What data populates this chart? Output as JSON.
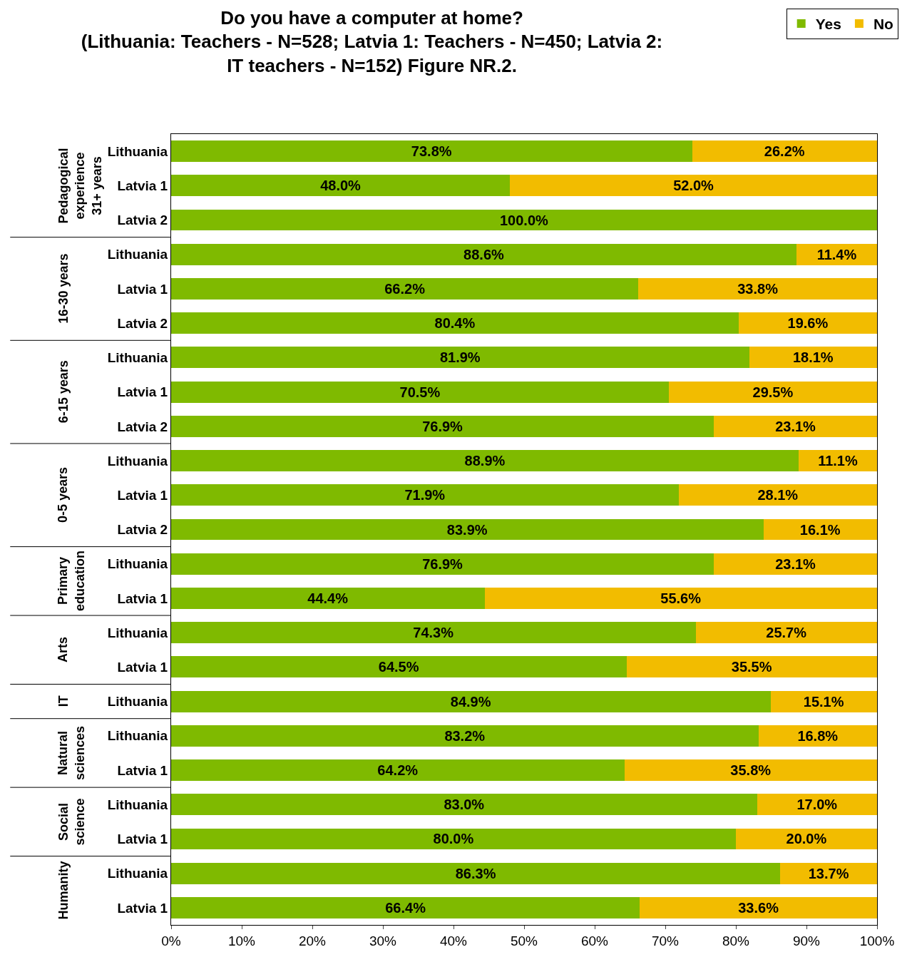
{
  "chart_data": {
    "type": "bar",
    "orientation": "horizontal",
    "stacked": true,
    "title": "Do you have a computer at home?\n(Lithuania: Teachers - N=528; Latvia 1: Teachers - N=450; Latvia 2:\nIT teachers - N=152) Figure NR.2.",
    "categories": [
      "Lithuania",
      "Latvia 1",
      "Latvia 2",
      "Lithuania",
      "Latvia 1",
      "Latvia 2",
      "Lithuania",
      "Latvia 1",
      "Latvia 2",
      "Lithuania",
      "Latvia 1",
      "Latvia 2",
      "Lithuania",
      "Latvia 1",
      "Lithuania",
      "Latvia 1",
      "Lithuania",
      "Lithuania",
      "Latvia 1",
      "Lithuania",
      "Latvia 1",
      "Lithuania",
      "Latvia 1"
    ],
    "series": [
      {
        "name": "Yes",
        "color": "#7fba00",
        "values": [
          73.8,
          48.0,
          100.0,
          88.6,
          66.2,
          80.4,
          81.9,
          70.5,
          76.9,
          88.9,
          71.9,
          83.9,
          76.9,
          44.4,
          74.3,
          64.5,
          84.9,
          83.2,
          64.2,
          83.0,
          80.0,
          86.3,
          66.4
        ],
        "value_labels": [
          "73.8%",
          "48.0%",
          "100.0%",
          "88.6%",
          "66.2%",
          "80.4%",
          "81.9%",
          "70.5%",
          "76.9%",
          "88.9%",
          "71.9%",
          "83.9%",
          "76.9%",
          "44.4%",
          "74.3%",
          "64.5%",
          "84.9%",
          "83.2%",
          "64.2%",
          "83.0%",
          "80.0%",
          "86.3%",
          "66.4%"
        ]
      },
      {
        "name": "No",
        "color": "#f2bc00",
        "values": [
          26.2,
          52.0,
          0.0,
          11.4,
          33.8,
          19.6,
          18.1,
          29.5,
          23.1,
          11.1,
          28.1,
          16.1,
          23.1,
          55.6,
          25.7,
          35.5,
          15.1,
          16.8,
          35.8,
          17.0,
          20.0,
          13.7,
          33.6
        ],
        "value_labels": [
          "26.2%",
          "52.0%",
          null,
          "11.4%",
          "33.8%",
          "19.6%",
          "18.1%",
          "29.5%",
          "23.1%",
          "11.1%",
          "28.1%",
          "16.1%",
          "23.1%",
          "55.6%",
          "25.7%",
          "35.5%",
          "15.1%",
          "16.8%",
          "35.8%",
          "17.0%",
          "20.0%",
          "13.7%",
          "33.6%"
        ]
      }
    ],
    "annotations": [
      "Pedagogical\nexperience\n31+ years",
      "16-30 years",
      "6-15 years",
      "0-5 years",
      "Primary\neducation",
      "Arts",
      "IT",
      "Natural\nsciences",
      "Social\nscience",
      "Humanity"
    ],
    "xlim": [
      0,
      100
    ],
    "xticks": [
      {
        "value": 0,
        "label": "0%"
      },
      {
        "value": 10,
        "label": "10%"
      },
      {
        "value": 20,
        "label": "20%"
      },
      {
        "value": 30,
        "label": "30%"
      },
      {
        "value": 40,
        "label": "40%"
      },
      {
        "value": 50,
        "label": "50%"
      },
      {
        "value": 60,
        "label": "60%"
      },
      {
        "value": 70,
        "label": "70%"
      },
      {
        "value": 80,
        "label": "80%"
      },
      {
        "value": 90,
        "label": "90%"
      },
      {
        "value": 100,
        "label": "100%"
      }
    ],
    "legend": "top right"
  }
}
